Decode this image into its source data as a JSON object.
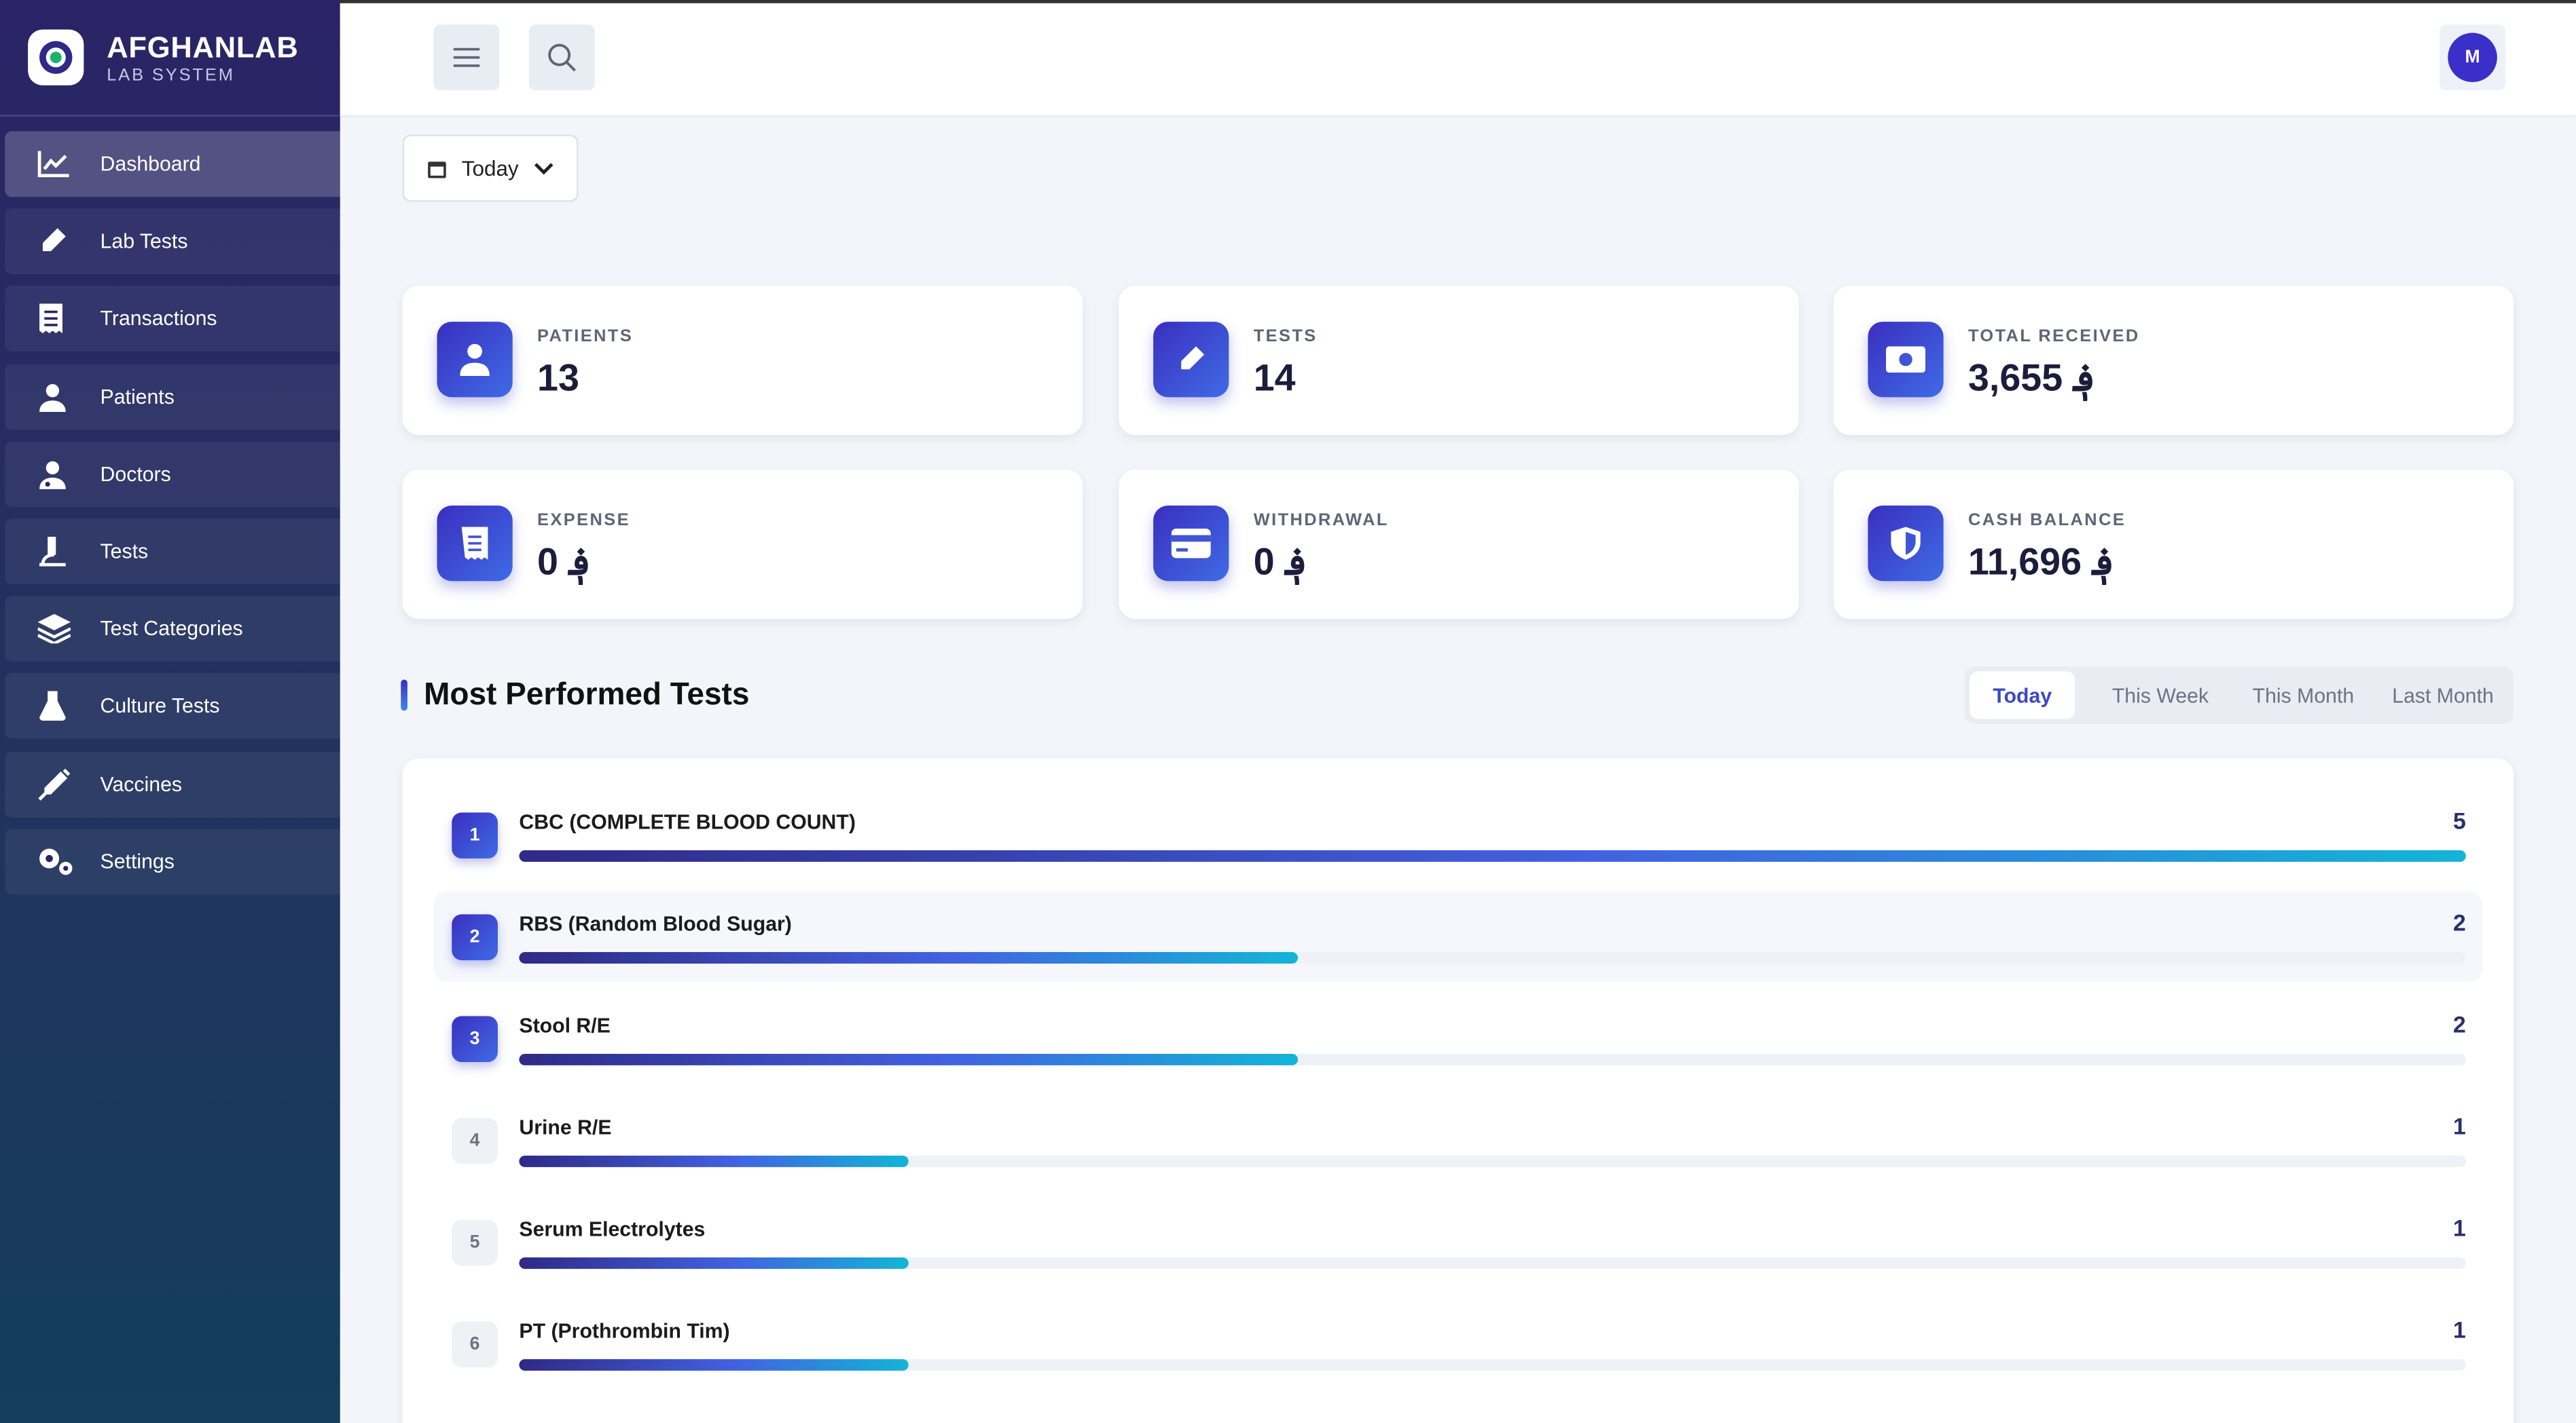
{
  "sidebar": {
    "brand": "AFGHANLAB",
    "subtitle": "LAB SYSTEM",
    "nav": [
      "Dashboard",
      "Lab Tests",
      "Transactions",
      "Patients",
      "Doctors",
      "Tests",
      "Test Categories",
      "Culture Tests",
      "Vaccines",
      "Settings"
    ]
  },
  "header": {
    "avatar": "M"
  },
  "filter": "Today",
  "stats": [
    {
      "label": "PATIENTS",
      "value": "13"
    },
    {
      "label": "TESTS",
      "value": "14"
    },
    {
      "label": "TOTAL RECEIVED",
      "value": "3,655 ؋"
    },
    {
      "label": "EXPENSE",
      "value": "0 ؋"
    },
    {
      "label": "WITHDRAWAL",
      "value": "0 ؋"
    },
    {
      "label": "CASH BALANCE",
      "value": "11,696 ؋"
    }
  ],
  "tests": {
    "title": "Most Performed Tests",
    "tabs": [
      "Today",
      "This Week",
      "This Month",
      "Last Month"
    ],
    "items": [
      {
        "rank": "1",
        "name": "CBC (COMPLETE BLOOD COUNT)",
        "count": 5
      },
      {
        "rank": "2",
        "name": "RBS (Random Blood Sugar)",
        "count": 2
      },
      {
        "rank": "3",
        "name": "Stool R/E",
        "count": 2
      },
      {
        "rank": "4",
        "name": "Urine R/E",
        "count": 1
      },
      {
        "rank": "5",
        "name": "Serum Electrolytes",
        "count": 1
      },
      {
        "rank": "6",
        "name": "PT (Prothrombin Tim)",
        "count": 1
      }
    ]
  }
}
